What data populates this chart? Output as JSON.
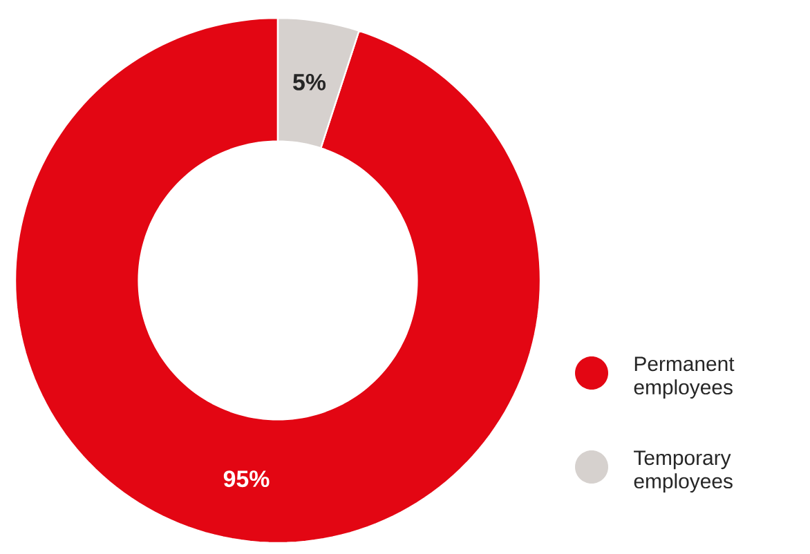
{
  "chart_data": {
    "type": "donut",
    "categories": [
      "Permanent employees",
      "Temporary employees"
    ],
    "values": [
      95,
      5
    ],
    "colors": [
      "#e30613",
      "#d6d1ce"
    ],
    "value_labels": [
      "95%",
      "5%"
    ],
    "legend": "right"
  }
}
